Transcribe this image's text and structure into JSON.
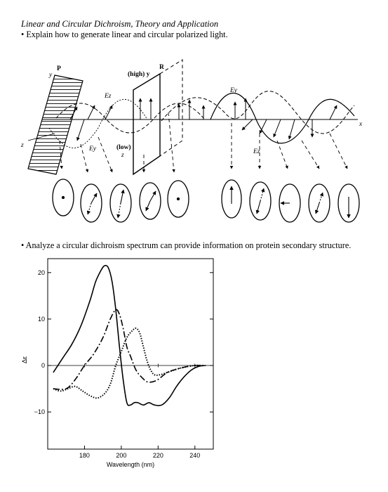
{
  "heading": "Linear and Circular Dichroism, Theory and Application",
  "bullets": [
    "• Explain how to generate linear and circular polarized light.",
    "• Analyze a circular dichroism spectrum can provide information on protein secondary structure."
  ],
  "diagram": {
    "labels": {
      "polarizer": "P",
      "retarder": "R",
      "y_axis": "y",
      "x_axis": "x",
      "z_axis": "z",
      "high": "(high) y",
      "low": "(low)",
      "low_z": "z",
      "Ez_1": "Ez",
      "Ey_1": "Ey",
      "Ey_2": "Ey",
      "Ez_2": "Ez"
    }
  },
  "chart_data": {
    "type": "line",
    "xlabel": "Wavelength (nm)",
    "ylabel": "Δε",
    "xlim": [
      160,
      250
    ],
    "ylim": [
      -18,
      23
    ],
    "x_ticks": [
      180,
      200,
      220,
      240
    ],
    "y_ticks": [
      -10,
      0,
      10,
      20
    ],
    "series": [
      {
        "style": "solid",
        "x": [
          163,
          168,
          173,
          178,
          183,
          186,
          189,
          191,
          193,
          195,
          197,
          199,
          201,
          203,
          205,
          207,
          209,
          212,
          215,
          218,
          222,
          226,
          230,
          234,
          238,
          242,
          246
        ],
        "y": [
          -1.5,
          1.5,
          4.5,
          8.5,
          14,
          18,
          20.5,
          21.5,
          21,
          18,
          12,
          4,
          -3,
          -8,
          -8.5,
          -8,
          -8,
          -8.5,
          -8,
          -8.5,
          -8.5,
          -7,
          -4.5,
          -2.5,
          -1,
          -0.2,
          0
        ]
      },
      {
        "style": "dash-dot",
        "x": [
          163,
          170,
          175,
          180,
          185,
          190,
          194,
          197,
          199,
          201,
          203,
          205,
          208,
          211,
          214,
          217,
          220,
          225,
          230,
          235,
          240,
          245
        ],
        "y": [
          -5,
          -5,
          -3,
          0,
          2.5,
          6,
          10,
          12,
          11,
          8,
          4,
          2,
          -1,
          -2.5,
          -3.5,
          -3.5,
          -3,
          -1.5,
          -0.8,
          -0.3,
          0,
          0
        ]
      },
      {
        "style": "dotted",
        "x": [
          163,
          167,
          171,
          175,
          179,
          183,
          187,
          191,
          194,
          197,
          200,
          203,
          206,
          208,
          210,
          212,
          214,
          216,
          218,
          221,
          225,
          230,
          235,
          240,
          245
        ],
        "y": [
          -5,
          -5.5,
          -5,
          -4.5,
          -5.5,
          -6.5,
          -7,
          -6,
          -4,
          0,
          3,
          6,
          7.5,
          8,
          7,
          4,
          1,
          -1,
          -2,
          -2,
          -1.5,
          -0.8,
          -0.3,
          0,
          0
        ]
      }
    ]
  }
}
